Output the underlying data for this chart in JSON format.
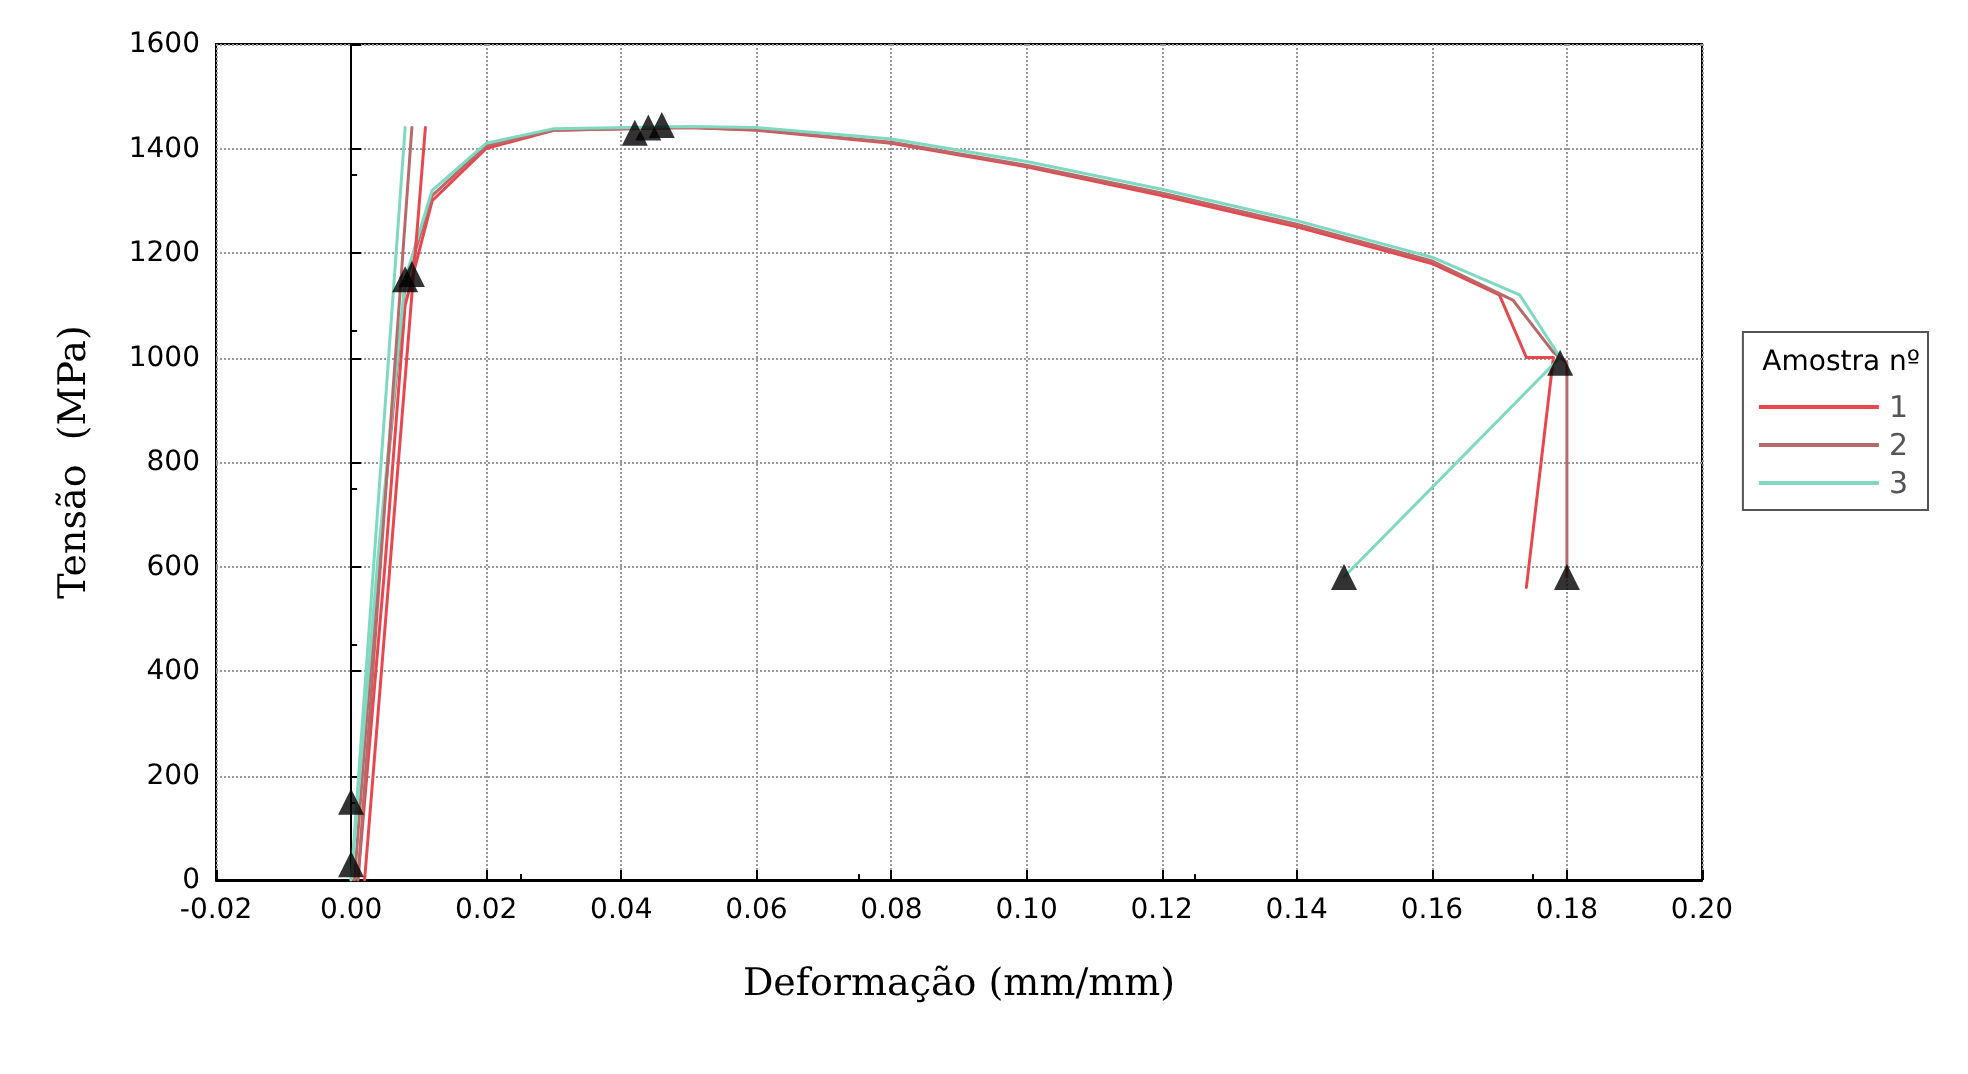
{
  "chart_data": {
    "type": "line",
    "xlabel": "Deformação (mm/mm)",
    "ylabel": "Tensão  (MPa)",
    "legend_title": "Amostra nº",
    "legend": "right",
    "grid": true,
    "marker": "none",
    "xlim": [
      -0.02,
      0.2
    ],
    "ylim": [
      0,
      1600
    ],
    "xticks": [
      {
        "value": -0.02,
        "label": "-0.02"
      },
      {
        "value": 0,
        "label": "0.00"
      },
      {
        "value": 0.02,
        "label": "0.02"
      },
      {
        "value": 0.04,
        "label": "0.04"
      },
      {
        "value": 0.06,
        "label": "0.06"
      },
      {
        "value": 0.08,
        "label": "0.08"
      },
      {
        "value": 0.1,
        "label": "0.10"
      },
      {
        "value": 0.12,
        "label": "0.12"
      },
      {
        "value": 0.14,
        "label": "0.14"
      },
      {
        "value": 0.16,
        "label": "0.16"
      },
      {
        "value": 0.18,
        "label": "0.18"
      },
      {
        "value": 0.2,
        "label": "0.20"
      }
    ],
    "yticks": [
      0,
      200,
      400,
      600,
      800,
      1000,
      1200,
      1400,
      1600
    ],
    "series": [
      {
        "name": "1",
        "color": "#e8474f",
        "x": [
          0.001,
          0.005,
          0.008,
          0.012,
          0.02,
          0.03,
          0.05,
          0.06,
          0.08,
          0.1,
          0.12,
          0.14,
          0.16,
          0.17,
          0.174,
          0.178,
          0.174
        ],
        "values": [
          0,
          600,
          1100,
          1300,
          1400,
          1435,
          1440,
          1435,
          1410,
          1365,
          1310,
          1250,
          1180,
          1120,
          1000,
          1000,
          560
        ]
      },
      {
        "name": "2",
        "color": "#b86a6a",
        "x": [
          0.0005,
          0.004,
          0.008,
          0.012,
          0.02,
          0.03,
          0.05,
          0.06,
          0.08,
          0.1,
          0.12,
          0.14,
          0.16,
          0.172,
          0.178,
          0.18,
          0.18
        ],
        "values": [
          0,
          600,
          1140,
          1310,
          1405,
          1435,
          1440,
          1436,
          1412,
          1368,
          1315,
          1255,
          1185,
          1110,
          1010,
          990,
          580
        ]
      },
      {
        "name": "3",
        "color": "#7fd9c0",
        "x": [
          0,
          0.004,
          0.008,
          0.012,
          0.02,
          0.03,
          0.05,
          0.06,
          0.08,
          0.1,
          0.12,
          0.14,
          0.16,
          0.173,
          0.179,
          0.147
        ],
        "values": [
          0,
          620,
          1150,
          1320,
          1410,
          1438,
          1442,
          1440,
          1418,
          1375,
          1322,
          1262,
          1192,
          1120,
          1000,
          580
        ]
      },
      {
        "color": "#e8474f",
        "x": [
          0.002,
          0.011
        ],
        "values": [
          0,
          1440
        ]
      },
      {
        "color": "#b86a6a",
        "x": [
          0.001,
          0.009
        ],
        "values": [
          0,
          1440
        ]
      },
      {
        "color": "#7fd9c0",
        "x": [
          0,
          0.008
        ],
        "values": [
          0,
          1440
        ]
      },
      {
        "type": "scatter",
        "marker": "triangle",
        "color": "#000000",
        "x": [
          0,
          0,
          0.008,
          0.009,
          0.042,
          0.044,
          0.046,
          0.147,
          0.179,
          0.18
        ],
        "values": [
          30,
          150,
          1150,
          1160,
          1430,
          1440,
          1445,
          580,
          990,
          580
        ]
      }
    ]
  }
}
